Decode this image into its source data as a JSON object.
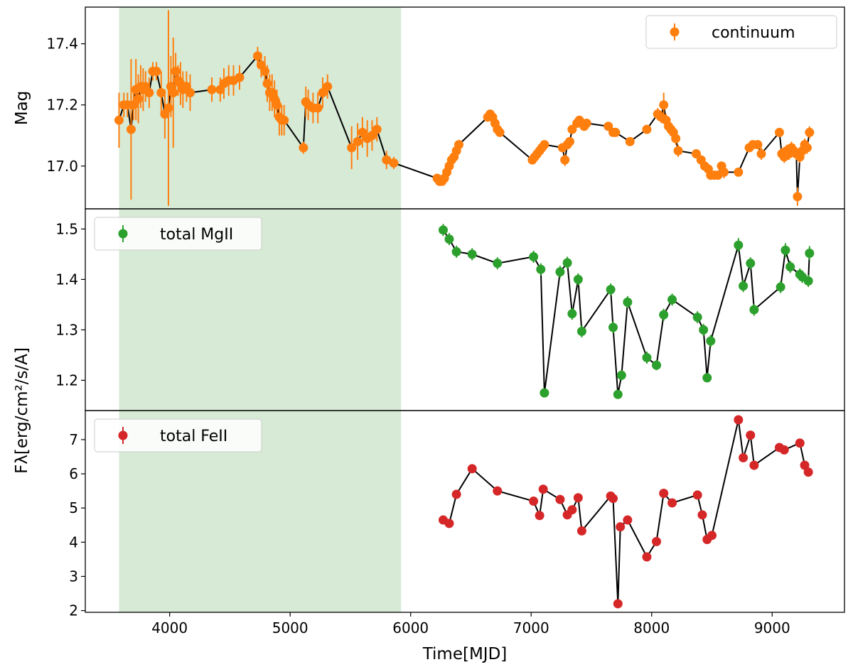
{
  "chart_data": {
    "type": "line",
    "x_label": "Time[MJD]",
    "x_range": [
      3300,
      9600
    ],
    "x_ticks": [
      4000,
      5000,
      6000,
      7000,
      8000,
      9000
    ],
    "shaded_region": {
      "x_start": 3580,
      "x_end": 5920,
      "color": "#d6ead6"
    },
    "shared_ylabel": "Fλ[erg/cm²/s/A]",
    "panels": [
      {
        "name": "continuum",
        "ylabel": "Mag",
        "ylim": [
          16.86,
          17.52
        ],
        "yticks": [
          17.0,
          17.2,
          17.4
        ],
        "ytick_labels": [
          "17.0",
          "17.2",
          "17.4"
        ],
        "legend": {
          "label": "continuum",
          "position": "upper right"
        },
        "color": "#ff7f0e",
        "series": [
          {
            "name": "continuum",
            "x": [
              3580,
              3620,
              3650,
              3680,
              3700,
              3720,
              3740,
              3760,
              3780,
              3800,
              3830,
              3860,
              3890,
              3930,
              3960,
              3990,
              4010,
              4030,
              4050,
              4070,
              4090,
              4110,
              4140,
              4170,
              4350,
              4420,
              4450,
              4490,
              4530,
              4580,
              4730,
              4760,
              4790,
              4810,
              4830,
              4850,
              4870,
              4890,
              4910,
              4930,
              4950,
              5110,
              5130,
              5150,
              5190,
              5230,
              5270,
              5310,
              5510,
              5560,
              5600,
              5640,
              5680,
              5720,
              5800,
              5860,
              6220,
              6240,
              6260,
              6280,
              6300,
              6320,
              6340,
              6360,
              6380,
              6400,
              6640,
              6660,
              6680,
              6700,
              6720,
              6740,
              7010,
              7030,
              7050,
              7070,
              7090,
              7110,
              7260,
              7280,
              7300,
              7320,
              7340,
              7380,
              7400,
              7420,
              7440,
              7460,
              7640,
              7680,
              7700,
              7820,
              7960,
              8050,
              8080,
              8100,
              8120,
              8140,
              8160,
              8180,
              8200,
              8220,
              8370,
              8410,
              8440,
              8470,
              8490,
              8520,
              8550,
              8580,
              8600,
              8720,
              8810,
              8840,
              8880,
              8910,
              9060,
              9080,
              9100,
              9120,
              9140,
              9160,
              9180,
              9200,
              9210,
              9230,
              9250,
              9270,
              9290,
              9310
            ],
            "y": [
              17.15,
              17.2,
              17.2,
              17.12,
              17.2,
              17.25,
              17.22,
              17.26,
              17.25,
              17.26,
              17.24,
              17.31,
              17.31,
              17.24,
              17.17,
              17.19,
              17.26,
              17.24,
              17.31,
              17.28,
              17.27,
              17.25,
              17.26,
              17.24,
              17.25,
              17.25,
              17.27,
              17.28,
              17.28,
              17.29,
              17.36,
              17.33,
              17.31,
              17.27,
              17.24,
              17.24,
              17.22,
              17.2,
              17.16,
              17.15,
              17.15,
              17.06,
              17.21,
              17.2,
              17.19,
              17.19,
              17.24,
              17.26,
              17.06,
              17.08,
              17.11,
              17.09,
              17.1,
              17.12,
              17.02,
              17.01,
              16.96,
              16.95,
              16.95,
              16.96,
              16.98,
              17.0,
              17.02,
              17.03,
              17.05,
              17.07,
              17.16,
              17.17,
              17.16,
              17.14,
              17.12,
              17.11,
              17.02,
              17.03,
              17.04,
              17.05,
              17.06,
              17.07,
              17.06,
              17.02,
              17.07,
              17.08,
              17.12,
              17.14,
              17.15,
              17.14,
              17.13,
              17.14,
              17.13,
              17.11,
              17.11,
              17.08,
              17.12,
              17.17,
              17.16,
              17.2,
              17.15,
              17.13,
              17.12,
              17.11,
              17.09,
              17.05,
              17.04,
              17.02,
              17.0,
              16.99,
              16.97,
              16.97,
              16.97,
              17.0,
              16.98,
              16.98,
              17.06,
              17.07,
              17.07,
              17.04,
              17.11,
              17.04,
              17.03,
              17.05,
              17.04,
              17.06,
              17.05,
              17.04,
              16.9,
              17.03,
              17.05,
              17.07,
              17.06,
              17.11
            ],
            "err": [
              0.09,
              0.04,
              0.04,
              0.23,
              0.05,
              0.1,
              0.08,
              0.07,
              0.07,
              0.05,
              0.05,
              0.03,
              0.03,
              0.07,
              0.08,
              0.32,
              0.1,
              0.18,
              0.06,
              0.05,
              0.07,
              0.06,
              0.05,
              0.06,
              0.04,
              0.04,
              0.05,
              0.05,
              0.05,
              0.04,
              0.03,
              0.04,
              0.05,
              0.06,
              0.06,
              0.06,
              0.06,
              0.05,
              0.06,
              0.05,
              0.05,
              0.02,
              0.05,
              0.05,
              0.05,
              0.05,
              0.05,
              0.04,
              0.07,
              0.06,
              0.05,
              0.06,
              0.05,
              0.04,
              0.03,
              0.02,
              0.01,
              0.01,
              0.01,
              0.01,
              0.01,
              0.01,
              0.01,
              0.01,
              0.01,
              0.01,
              0.01,
              0.01,
              0.01,
              0.01,
              0.01,
              0.01,
              0.01,
              0.01,
              0.01,
              0.01,
              0.01,
              0.01,
              0.01,
              0.02,
              0.01,
              0.01,
              0.01,
              0.01,
              0.01,
              0.01,
              0.01,
              0.01,
              0.01,
              0.01,
              0.01,
              0.01,
              0.01,
              0.02,
              0.02,
              0.04,
              0.02,
              0.02,
              0.02,
              0.02,
              0.02,
              0.02,
              0.01,
              0.01,
              0.01,
              0.01,
              0.01,
              0.01,
              0.01,
              0.01,
              0.02,
              0.01,
              0.01,
              0.01,
              0.01,
              0.02,
              0.01,
              0.02,
              0.02,
              0.02,
              0.02,
              0.02,
              0.02,
              0.02,
              0.03,
              0.02,
              0.02,
              0.02,
              0.02,
              0.02
            ]
          }
        ]
      },
      {
        "name": "total MgII",
        "ylabel": "",
        "ylim": [
          1.14,
          1.54
        ],
        "yticks": [
          1.2,
          1.3,
          1.4,
          1.5
        ],
        "ytick_labels": [
          "1.2",
          "1.3",
          "1.4",
          "1.5"
        ],
        "legend": {
          "label": "total MgII",
          "position": "upper left"
        },
        "color": "#2ca02c",
        "series": [
          {
            "name": "total MgII",
            "x": [
              6270,
              6320,
              6380,
              6510,
              6720,
              7020,
              7080,
              7110,
              7240,
              7300,
              7340,
              7390,
              7420,
              7660,
              7680,
              7720,
              7750,
              7800,
              7960,
              8040,
              8100,
              8170,
              8380,
              8430,
              8460,
              8490,
              8720,
              8760,
              8820,
              8850,
              9070,
              9110,
              9150,
              9230,
              9250,
              9300,
              9310
            ],
            "y": [
              1.498,
              1.48,
              1.455,
              1.45,
              1.432,
              1.445,
              1.42,
              1.175,
              1.415,
              1.433,
              1.332,
              1.4,
              1.297,
              1.38,
              1.305,
              1.172,
              1.21,
              1.355,
              1.245,
              1.23,
              1.33,
              1.36,
              1.325,
              1.3,
              1.205,
              1.278,
              1.468,
              1.387,
              1.432,
              1.34,
              1.385,
              1.458,
              1.425,
              1.41,
              1.405,
              1.397,
              1.452
            ],
            "err": [
              0.012,
              0.012,
              0.012,
              0.012,
              0.012,
              0.012,
              0.012,
              0.008,
              0.012,
              0.012,
              0.012,
              0.012,
              0.012,
              0.012,
              0.012,
              0.008,
              0.01,
              0.012,
              0.012,
              0.01,
              0.012,
              0.012,
              0.012,
              0.012,
              0.008,
              0.012,
              0.014,
              0.012,
              0.012,
              0.012,
              0.012,
              0.014,
              0.012,
              0.012,
              0.012,
              0.012,
              0.014
            ]
          }
        ]
      },
      {
        "name": "total FeII",
        "ylabel": "",
        "ylim": [
          1.95,
          7.85
        ],
        "yticks": [
          2,
          3,
          4,
          5,
          6,
          7
        ],
        "ytick_labels": [
          "2",
          "3",
          "4",
          "5",
          "6",
          "7"
        ],
        "legend": {
          "label": "total FeII",
          "position": "upper left"
        },
        "color": "#d62728",
        "series": [
          {
            "name": "total FeII",
            "x": [
              6270,
              6320,
              6380,
              6510,
              6720,
              7020,
              7070,
              7100,
              7240,
              7300,
              7340,
              7390,
              7420,
              7660,
              7680,
              7720,
              7740,
              7800,
              7960,
              8040,
              8100,
              8170,
              8380,
              8420,
              8460,
              8500,
              8720,
              8760,
              8820,
              8850,
              9060,
              9100,
              9230,
              9270,
              9300
            ],
            "y": [
              4.65,
              4.55,
              5.4,
              6.15,
              5.5,
              5.2,
              4.78,
              5.55,
              5.25,
              4.8,
              4.95,
              5.3,
              4.33,
              5.35,
              5.28,
              2.2,
              4.45,
              4.65,
              3.57,
              4.02,
              5.43,
              5.15,
              5.38,
              4.8,
              4.08,
              4.2,
              7.58,
              6.47,
              7.13,
              6.25,
              6.77,
              6.7,
              6.9,
              6.25,
              6.05
            ],
            "err": [
              0.05,
              0.05,
              0.05,
              0.05,
              0.05,
              0.05,
              0.05,
              0.05,
              0.05,
              0.05,
              0.05,
              0.05,
              0.05,
              0.05,
              0.05,
              0.05,
              0.05,
              0.05,
              0.05,
              0.05,
              0.05,
              0.05,
              0.05,
              0.05,
              0.05,
              0.05,
              0.05,
              0.05,
              0.05,
              0.05,
              0.05,
              0.05,
              0.05,
              0.05,
              0.05
            ]
          }
        ]
      }
    ]
  }
}
